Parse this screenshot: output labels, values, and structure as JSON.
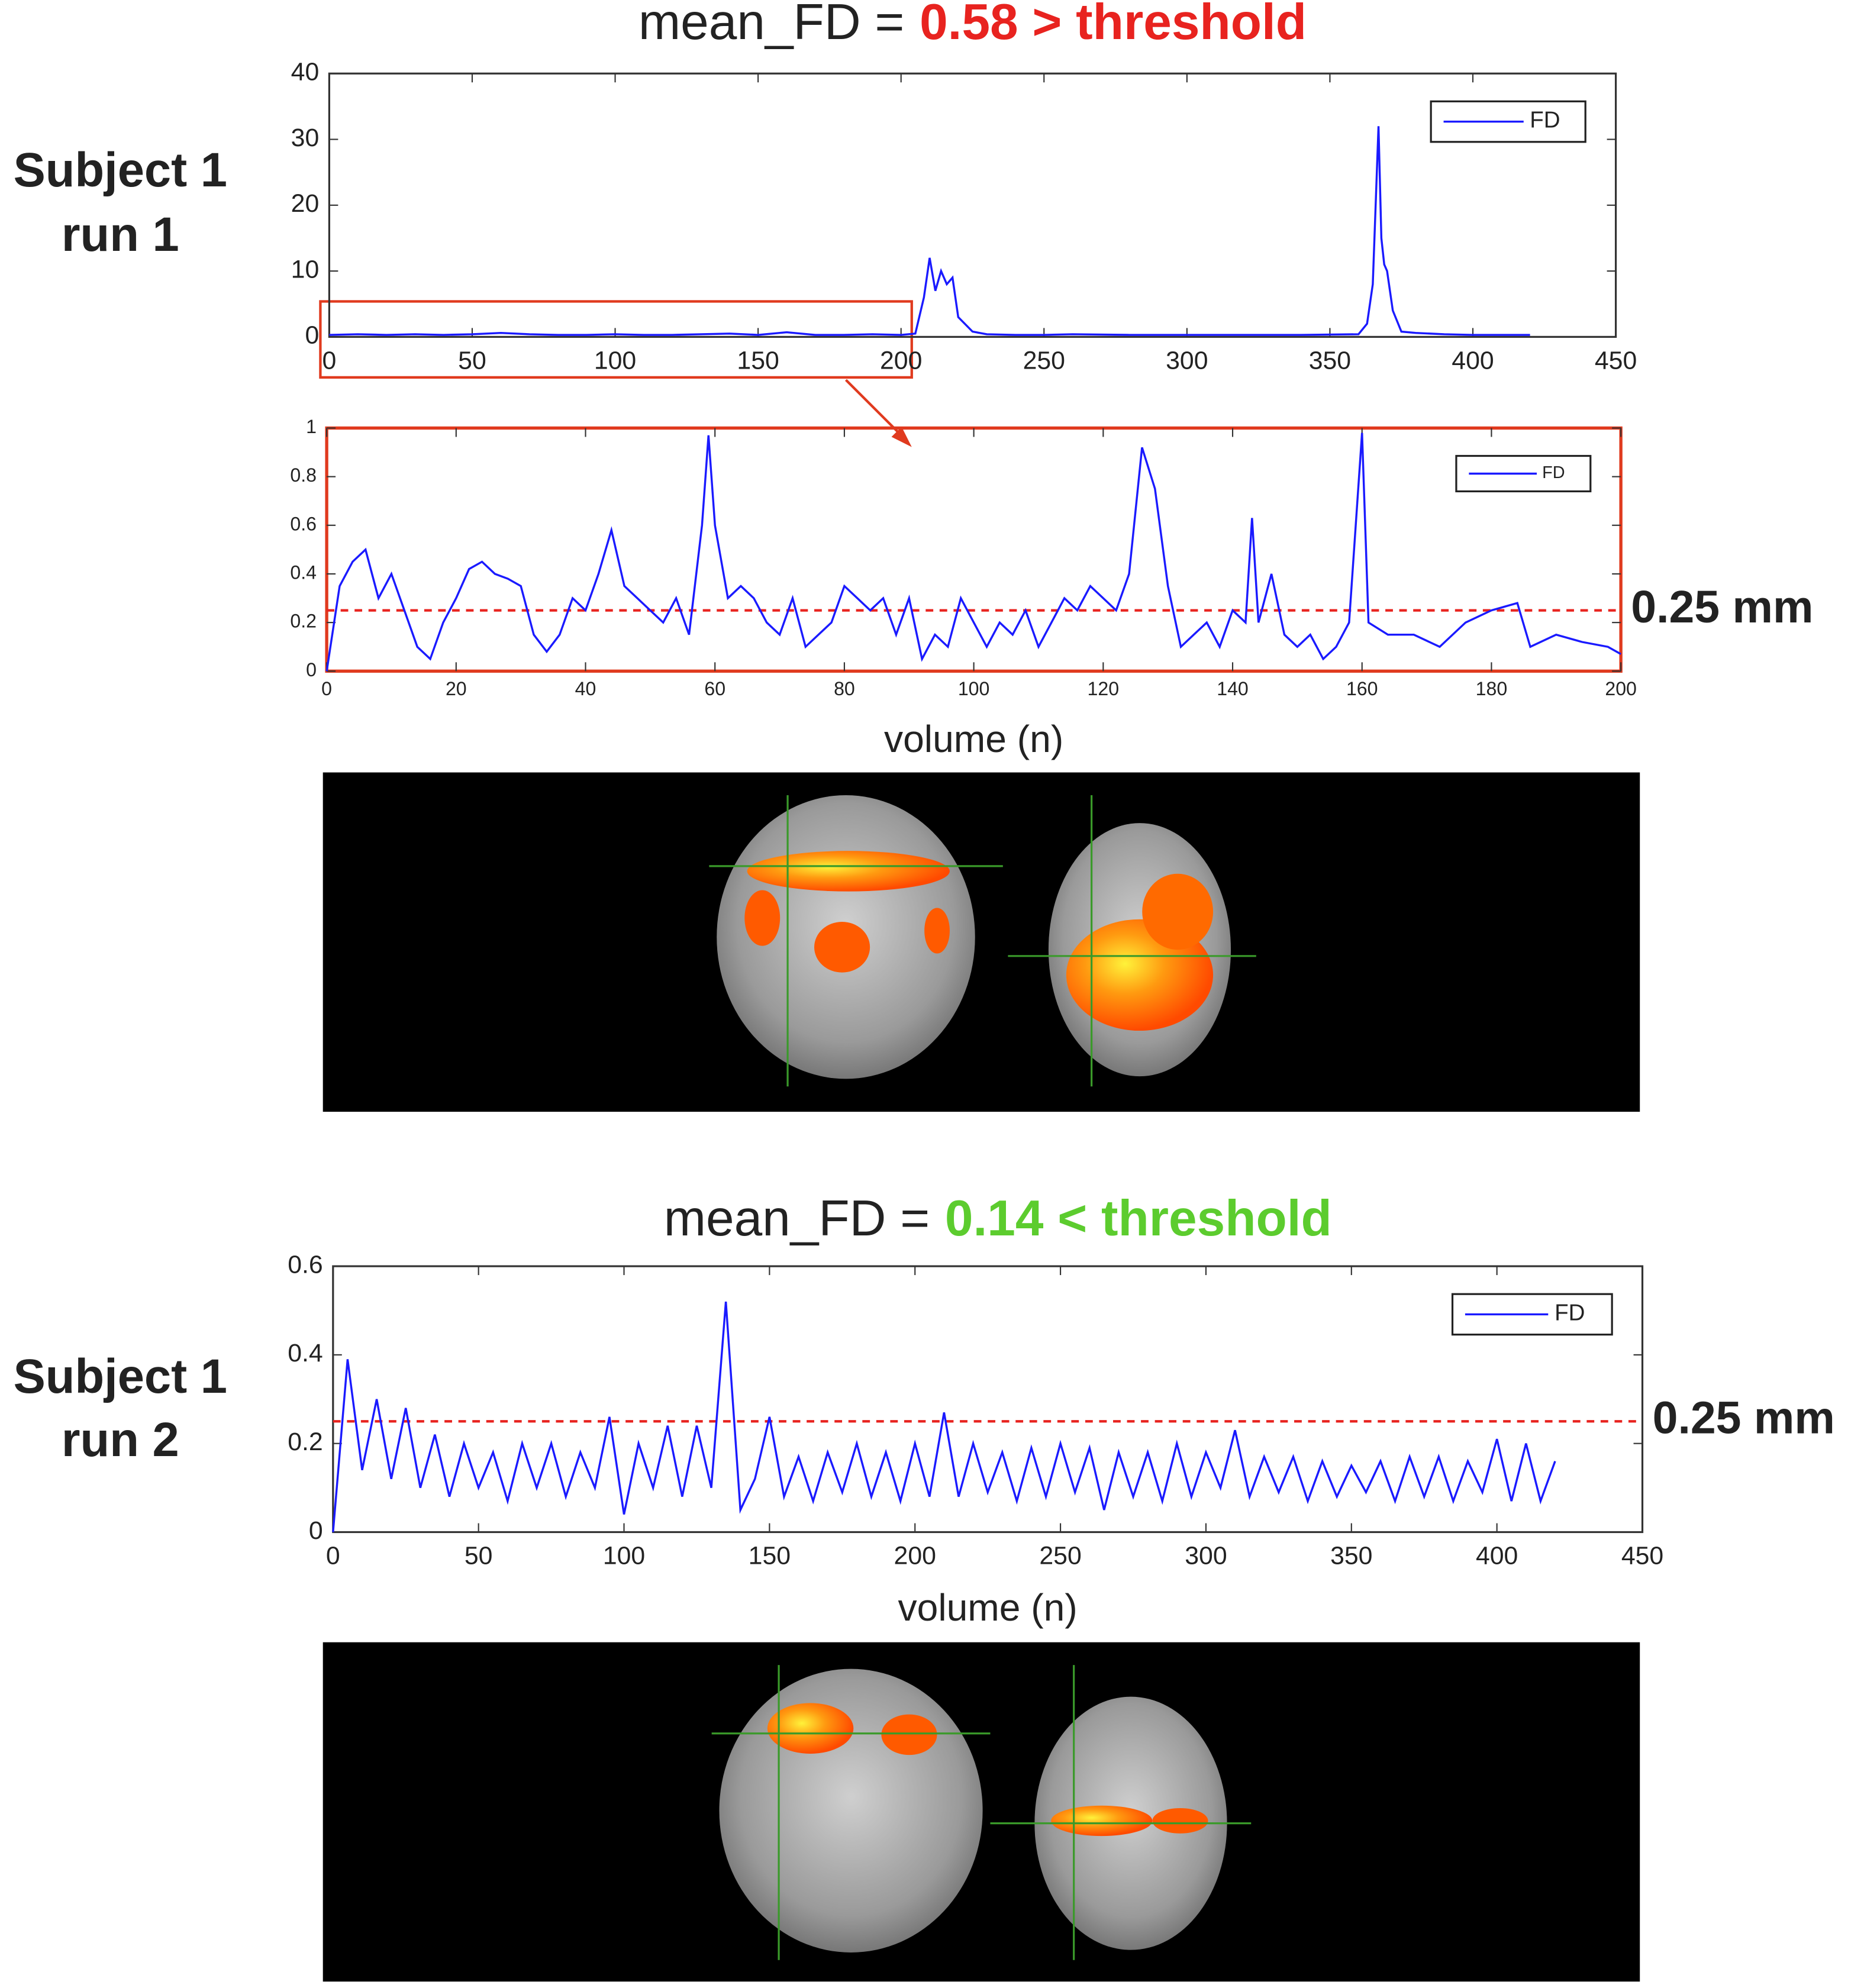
{
  "rows": [
    {
      "lines": [
        "Subject 1",
        "run 1"
      ]
    },
    {
      "lines": [
        "Subject 1",
        "run 2"
      ]
    }
  ],
  "chart_data": [
    {
      "type": "line",
      "title": "mean_FD =",
      "title_status": "0.58 > threshold",
      "title_status_color": "#e8231f",
      "xlim": [
        0,
        450
      ],
      "xticks": [
        0,
        50,
        100,
        150,
        200,
        250,
        300,
        350,
        400,
        450
      ],
      "ylim": [
        0,
        40
      ],
      "yticks": [
        0,
        10,
        20,
        30,
        40
      ],
      "legend": "upper right",
      "frame_color": "#333333",
      "x": [
        0,
        10,
        20,
        30,
        40,
        50,
        60,
        70,
        80,
        90,
        100,
        110,
        120,
        130,
        140,
        150,
        160,
        170,
        180,
        190,
        200,
        205,
        208,
        210,
        212,
        214,
        216,
        218,
        220,
        225,
        230,
        240,
        250,
        260,
        280,
        300,
        320,
        340,
        360,
        363,
        365,
        366,
        367,
        368,
        369,
        370,
        372,
        375,
        380,
        390,
        400,
        410,
        420
      ],
      "series": [
        {
          "name": "FD",
          "color": "#1a1aff",
          "values": [
            0.3,
            0.4,
            0.3,
            0.4,
            0.3,
            0.4,
            0.6,
            0.4,
            0.3,
            0.3,
            0.4,
            0.3,
            0.3,
            0.4,
            0.5,
            0.3,
            0.7,
            0.3,
            0.3,
            0.4,
            0.3,
            0.5,
            6,
            12,
            7,
            10,
            8,
            9,
            3,
            0.8,
            0.4,
            0.3,
            0.3,
            0.4,
            0.3,
            0.3,
            0.3,
            0.3,
            0.4,
            2,
            8,
            20,
            32,
            15,
            11,
            10,
            4,
            0.8,
            0.6,
            0.4,
            0.3,
            0.3,
            0.3
          ]
        }
      ]
    },
    {
      "type": "line",
      "xlabel": "volume (n)",
      "xlim": [
        0,
        200
      ],
      "xticks": [
        0,
        20,
        40,
        60,
        80,
        100,
        120,
        140,
        160,
        180,
        200
      ],
      "ylim": [
        0,
        1
      ],
      "yticks": [
        0,
        0.2,
        0.4,
        0.6,
        0.8,
        1
      ],
      "legend": "upper right",
      "frame_color": "#e03a1e",
      "threshold": {
        "value": 0.25,
        "label": "0.25 mm",
        "color": "#e8231f"
      },
      "x": [
        0,
        2,
        4,
        6,
        8,
        10,
        12,
        14,
        16,
        18,
        20,
        22,
        24,
        26,
        28,
        30,
        32,
        34,
        36,
        38,
        40,
        42,
        44,
        46,
        48,
        50,
        52,
        54,
        56,
        58,
        59,
        60,
        62,
        64,
        66,
        68,
        70,
        72,
        74,
        76,
        78,
        80,
        82,
        84,
        86,
        88,
        90,
        92,
        94,
        96,
        98,
        100,
        102,
        104,
        106,
        108,
        110,
        112,
        114,
        116,
        118,
        120,
        122,
        124,
        126,
        128,
        130,
        132,
        134,
        136,
        138,
        140,
        142,
        143,
        144,
        146,
        148,
        150,
        152,
        154,
        156,
        158,
        160,
        161,
        164,
        168,
        172,
        176,
        180,
        184,
        186,
        190,
        194,
        198,
        200
      ],
      "series": [
        {
          "name": "FD",
          "color": "#1a1aff",
          "values": [
            0,
            0.35,
            0.45,
            0.5,
            0.3,
            0.4,
            0.25,
            0.1,
            0.05,
            0.2,
            0.3,
            0.42,
            0.45,
            0.4,
            0.38,
            0.35,
            0.15,
            0.08,
            0.15,
            0.3,
            0.25,
            0.4,
            0.58,
            0.35,
            0.3,
            0.25,
            0.2,
            0.3,
            0.15,
            0.6,
            0.97,
            0.6,
            0.3,
            0.35,
            0.3,
            0.2,
            0.15,
            0.3,
            0.1,
            0.15,
            0.2,
            0.35,
            0.3,
            0.25,
            0.3,
            0.15,
            0.3,
            0.05,
            0.15,
            0.1,
            0.3,
            0.2,
            0.1,
            0.2,
            0.15,
            0.25,
            0.1,
            0.2,
            0.3,
            0.25,
            0.35,
            0.3,
            0.25,
            0.4,
            0.92,
            0.75,
            0.35,
            0.1,
            0.15,
            0.2,
            0.1,
            0.25,
            0.2,
            0.63,
            0.2,
            0.4,
            0.15,
            0.1,
            0.15,
            0.05,
            0.1,
            0.2,
            0.98,
            0.2,
            0.15,
            0.15,
            0.1,
            0.2,
            0.25,
            0.28,
            0.1,
            0.15,
            0.12,
            0.1,
            0.07
          ]
        }
      ]
    },
    {
      "type": "line",
      "title": "mean_FD =",
      "title_status": "0.14 < threshold",
      "title_status_color": "#5ccc2e",
      "xlabel": "volume (n)",
      "xlim": [
        0,
        450
      ],
      "xticks": [
        0,
        50,
        100,
        150,
        200,
        250,
        300,
        350,
        400,
        450
      ],
      "ylim": [
        0,
        0.6
      ],
      "yticks": [
        0,
        0.2,
        0.4,
        0.6
      ],
      "legend": "upper right",
      "frame_color": "#333333",
      "threshold": {
        "value": 0.25,
        "label": "0.25 mm",
        "color": "#e8231f"
      },
      "x": [
        0,
        5,
        10,
        15,
        20,
        25,
        30,
        35,
        40,
        45,
        50,
        55,
        60,
        65,
        70,
        75,
        80,
        85,
        90,
        95,
        100,
        105,
        110,
        115,
        120,
        125,
        130,
        135,
        140,
        145,
        150,
        155,
        160,
        165,
        170,
        175,
        180,
        185,
        190,
        195,
        200,
        205,
        210,
        215,
        220,
        225,
        230,
        235,
        240,
        245,
        250,
        255,
        260,
        265,
        270,
        275,
        280,
        285,
        290,
        295,
        300,
        305,
        310,
        315,
        320,
        325,
        330,
        335,
        340,
        345,
        350,
        355,
        360,
        365,
        370,
        375,
        380,
        385,
        390,
        395,
        400,
        405,
        410,
        415,
        420
      ],
      "series": [
        {
          "name": "FD",
          "color": "#1a1aff",
          "values": [
            0,
            0.39,
            0.14,
            0.3,
            0.12,
            0.28,
            0.1,
            0.22,
            0.08,
            0.2,
            0.1,
            0.18,
            0.07,
            0.2,
            0.1,
            0.2,
            0.08,
            0.18,
            0.1,
            0.26,
            0.04,
            0.2,
            0.1,
            0.24,
            0.08,
            0.24,
            0.1,
            0.52,
            0.05,
            0.12,
            0.26,
            0.08,
            0.17,
            0.07,
            0.18,
            0.09,
            0.2,
            0.08,
            0.18,
            0.07,
            0.2,
            0.08,
            0.27,
            0.08,
            0.2,
            0.09,
            0.18,
            0.07,
            0.19,
            0.08,
            0.2,
            0.09,
            0.19,
            0.05,
            0.18,
            0.08,
            0.18,
            0.07,
            0.2,
            0.08,
            0.18,
            0.1,
            0.23,
            0.08,
            0.17,
            0.09,
            0.17,
            0.07,
            0.16,
            0.08,
            0.15,
            0.09,
            0.16,
            0.07,
            0.17,
            0.08,
            0.17,
            0.07,
            0.16,
            0.09,
            0.21,
            0.07,
            0.2,
            0.07,
            0.16
          ]
        }
      ]
    }
  ]
}
